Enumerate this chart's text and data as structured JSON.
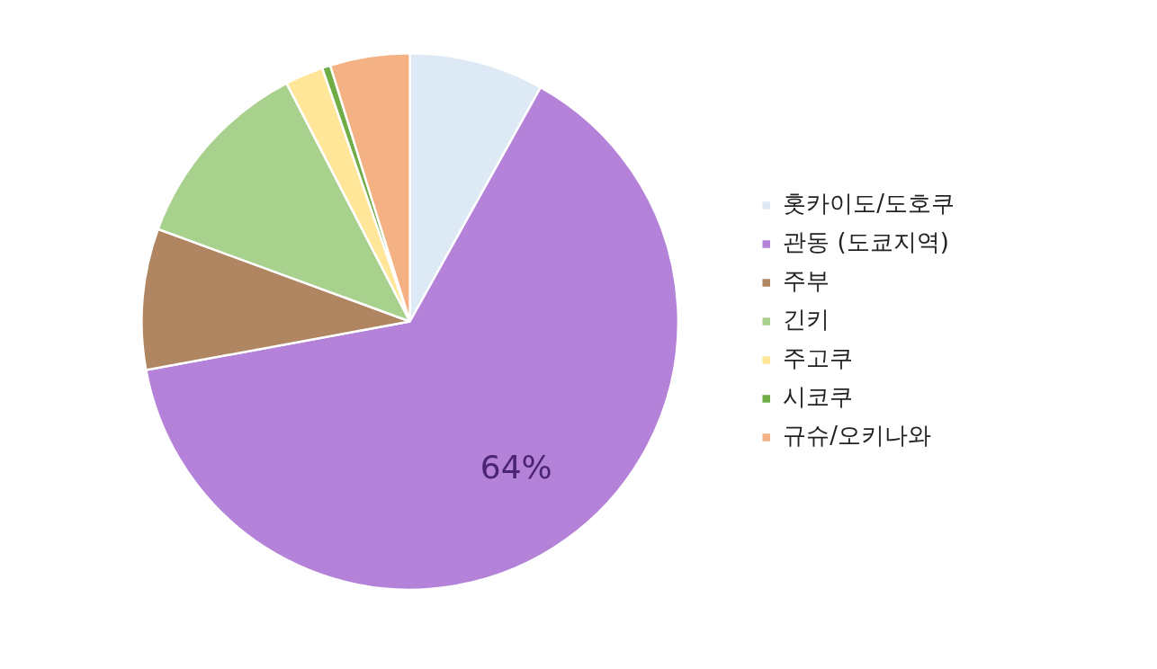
{
  "chart_data": {
    "type": "pie",
    "categories": [
      "홋카이도/도호쿠",
      "관동 (도쿄지역)",
      "주부",
      "긴키",
      "주고쿠",
      "시코쿠",
      "규슈/오키나와"
    ],
    "values": [
      8.1,
      64,
      8.5,
      11.8,
      2.3,
      0.5,
      4.8
    ],
    "colors": [
      "#dde9f5",
      "#b482d8",
      "#b08562",
      "#a9d18e",
      "#ffe699",
      "#70ad47",
      "#f4b183"
    ],
    "value_labels": [
      null,
      "64%",
      null,
      null,
      null,
      null,
      null
    ],
    "legend": "right"
  }
}
